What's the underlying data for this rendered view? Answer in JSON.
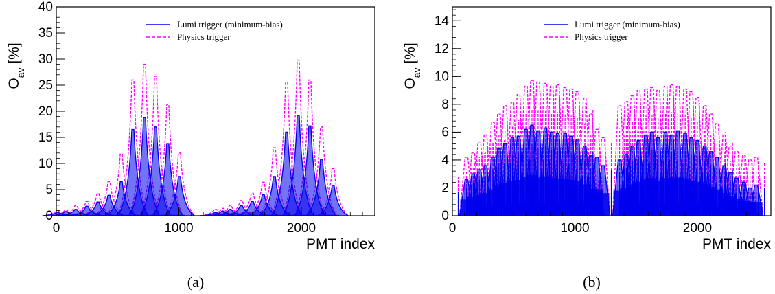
{
  "chart_data": [
    {
      "panel": "a",
      "type": "line",
      "caption": "(a)",
      "xlabel": "PMT index",
      "ylabel_main": "O",
      "ylabel_sub": "av",
      "ylabel_unit": " [%]",
      "xlim": [
        0,
        2600
      ],
      "ylim": [
        0,
        40
      ],
      "xticks": [
        0,
        1000,
        2000
      ],
      "yticks": [
        0,
        5,
        10,
        15,
        20,
        25,
        30,
        35,
        40
      ],
      "grid": false,
      "legend_position": "top-center",
      "gaps": [
        [
          1050,
          1270
        ],
        [
          2310,
          2600
        ]
      ],
      "series": [
        {
          "name": "Lumi trigger (minimum-bias)",
          "color": "#0000ee",
          "style": "solid",
          "peaks": [
            {
              "x": 10,
              "y": 0.6
            },
            {
              "x": 80,
              "y": 0.8
            },
            {
              "x": 160,
              "y": 1.2
            },
            {
              "x": 250,
              "y": 1.8
            },
            {
              "x": 340,
              "y": 2.6
            },
            {
              "x": 430,
              "y": 3.9
            },
            {
              "x": 530,
              "y": 6.5
            },
            {
              "x": 625,
              "y": 16.5
            },
            {
              "x": 720,
              "y": 18.8
            },
            {
              "x": 810,
              "y": 17.0
            },
            {
              "x": 910,
              "y": 13.8
            },
            {
              "x": 1005,
              "y": 7.5
            },
            {
              "x": 1300,
              "y": 0.6
            },
            {
              "x": 1360,
              "y": 0.9
            },
            {
              "x": 1420,
              "y": 1.2
            },
            {
              "x": 1510,
              "y": 1.9
            },
            {
              "x": 1600,
              "y": 2.7
            },
            {
              "x": 1690,
              "y": 4.0
            },
            {
              "x": 1780,
              "y": 7.5
            },
            {
              "x": 1880,
              "y": 16.0
            },
            {
              "x": 1975,
              "y": 19.2
            },
            {
              "x": 2070,
              "y": 17.2
            },
            {
              "x": 2165,
              "y": 10.8
            },
            {
              "x": 2260,
              "y": 5.8
            }
          ]
        },
        {
          "name": "Physics trigger",
          "color": "#ff00ff",
          "style": "dashed",
          "peaks": [
            {
              "x": 10,
              "y": 0.9
            },
            {
              "x": 80,
              "y": 1.1
            },
            {
              "x": 160,
              "y": 1.9
            },
            {
              "x": 250,
              "y": 2.7
            },
            {
              "x": 340,
              "y": 4.2
            },
            {
              "x": 430,
              "y": 6.5
            },
            {
              "x": 530,
              "y": 11.8
            },
            {
              "x": 625,
              "y": 26.0
            },
            {
              "x": 720,
              "y": 29.0
            },
            {
              "x": 810,
              "y": 26.7
            },
            {
              "x": 910,
              "y": 21.3
            },
            {
              "x": 1005,
              "y": 12.0
            },
            {
              "x": 1300,
              "y": 1.2
            },
            {
              "x": 1360,
              "y": 1.4
            },
            {
              "x": 1420,
              "y": 1.9
            },
            {
              "x": 1510,
              "y": 2.9
            },
            {
              "x": 1600,
              "y": 4.3
            },
            {
              "x": 1690,
              "y": 6.4
            },
            {
              "x": 1780,
              "y": 13.0
            },
            {
              "x": 1880,
              "y": 25.5
            },
            {
              "x": 1975,
              "y": 29.8
            },
            {
              "x": 2070,
              "y": 26.0
            },
            {
              "x": 2165,
              "y": 17.0
            },
            {
              "x": 2260,
              "y": 9.0
            }
          ]
        }
      ]
    },
    {
      "panel": "b",
      "type": "line",
      "caption": "(b)",
      "xlabel": "PMT index",
      "ylabel_main": "O",
      "ylabel_sub": "av",
      "ylabel_unit": " [%]",
      "xlim": [
        0,
        2600
      ],
      "ylim": [
        0,
        15
      ],
      "xticks": [
        0,
        1000,
        2000
      ],
      "yticks": [
        0,
        2,
        4,
        6,
        8,
        10,
        12,
        14
      ],
      "grid": false,
      "legend_position": "top-center",
      "gaps": [
        [
          0,
          100
        ],
        [
          1245,
          1350
        ],
        [
          2500,
          2600
        ]
      ],
      "series": [
        {
          "name": "Lumi trigger (minimum-bias)",
          "color": "#0000ee",
          "style": "solid",
          "peaks": [
            {
              "x": 115,
              "y": 2.6
            },
            {
              "x": 170,
              "y": 3.0
            },
            {
              "x": 220,
              "y": 3.3
            },
            {
              "x": 270,
              "y": 3.6
            },
            {
              "x": 330,
              "y": 4.2
            },
            {
              "x": 380,
              "y": 4.8
            },
            {
              "x": 430,
              "y": 5.2
            },
            {
              "x": 490,
              "y": 5.6
            },
            {
              "x": 540,
              "y": 5.7
            },
            {
              "x": 600,
              "y": 6.2
            },
            {
              "x": 650,
              "y": 6.5
            },
            {
              "x": 700,
              "y": 6.1
            },
            {
              "x": 760,
              "y": 6.3
            },
            {
              "x": 810,
              "y": 6.0
            },
            {
              "x": 860,
              "y": 5.9
            },
            {
              "x": 920,
              "y": 5.9
            },
            {
              "x": 970,
              "y": 5.7
            },
            {
              "x": 1020,
              "y": 5.5
            },
            {
              "x": 1080,
              "y": 5.0
            },
            {
              "x": 1130,
              "y": 4.3
            },
            {
              "x": 1180,
              "y": 4.2
            },
            {
              "x": 1230,
              "y": 3.6
            },
            {
              "x": 1365,
              "y": 4.0
            },
            {
              "x": 1420,
              "y": 4.4
            },
            {
              "x": 1470,
              "y": 5.0
            },
            {
              "x": 1520,
              "y": 5.4
            },
            {
              "x": 1580,
              "y": 5.8
            },
            {
              "x": 1630,
              "y": 6.0
            },
            {
              "x": 1680,
              "y": 5.6
            },
            {
              "x": 1740,
              "y": 6.0
            },
            {
              "x": 1790,
              "y": 5.8
            },
            {
              "x": 1840,
              "y": 6.1
            },
            {
              "x": 1900,
              "y": 5.9
            },
            {
              "x": 1950,
              "y": 5.6
            },
            {
              "x": 2000,
              "y": 5.4
            },
            {
              "x": 2060,
              "y": 5.0
            },
            {
              "x": 2110,
              "y": 4.6
            },
            {
              "x": 2160,
              "y": 4.2
            },
            {
              "x": 2220,
              "y": 3.6
            },
            {
              "x": 2270,
              "y": 3.1
            },
            {
              "x": 2320,
              "y": 2.7
            },
            {
              "x": 2380,
              "y": 2.4
            },
            {
              "x": 2430,
              "y": 2.0
            },
            {
              "x": 2480,
              "y": 2.2
            }
          ]
        },
        {
          "name": "Physics trigger",
          "color": "#ff00ff",
          "style": "dashed",
          "peaks": [
            {
              "x": 115,
              "y": 4.2
            },
            {
              "x": 170,
              "y": 4.5
            },
            {
              "x": 220,
              "y": 5.3
            },
            {
              "x": 270,
              "y": 5.8
            },
            {
              "x": 330,
              "y": 6.7
            },
            {
              "x": 380,
              "y": 7.3
            },
            {
              "x": 430,
              "y": 7.9
            },
            {
              "x": 490,
              "y": 8.1
            },
            {
              "x": 540,
              "y": 8.7
            },
            {
              "x": 600,
              "y": 9.3
            },
            {
              "x": 650,
              "y": 9.7
            },
            {
              "x": 700,
              "y": 9.6
            },
            {
              "x": 760,
              "y": 9.5
            },
            {
              "x": 810,
              "y": 9.3
            },
            {
              "x": 860,
              "y": 9.4
            },
            {
              "x": 920,
              "y": 9.2
            },
            {
              "x": 970,
              "y": 9.1
            },
            {
              "x": 1020,
              "y": 8.9
            },
            {
              "x": 1080,
              "y": 8.4
            },
            {
              "x": 1130,
              "y": 7.3
            },
            {
              "x": 1180,
              "y": 6.2
            },
            {
              "x": 1230,
              "y": 5.6
            },
            {
              "x": 1365,
              "y": 7.9
            },
            {
              "x": 1420,
              "y": 8.2
            },
            {
              "x": 1470,
              "y": 8.6
            },
            {
              "x": 1520,
              "y": 9.0
            },
            {
              "x": 1580,
              "y": 9.1
            },
            {
              "x": 1630,
              "y": 9.2
            },
            {
              "x": 1680,
              "y": 9.0
            },
            {
              "x": 1740,
              "y": 9.3
            },
            {
              "x": 1790,
              "y": 9.4
            },
            {
              "x": 1840,
              "y": 9.3
            },
            {
              "x": 1900,
              "y": 9.1
            },
            {
              "x": 1950,
              "y": 8.9
            },
            {
              "x": 2000,
              "y": 8.5
            },
            {
              "x": 2060,
              "y": 7.9
            },
            {
              "x": 2110,
              "y": 7.3
            },
            {
              "x": 2160,
              "y": 6.6
            },
            {
              "x": 2220,
              "y": 5.8
            },
            {
              "x": 2270,
              "y": 5.0
            },
            {
              "x": 2320,
              "y": 4.6
            },
            {
              "x": 2380,
              "y": 4.3
            },
            {
              "x": 2430,
              "y": 4.0
            },
            {
              "x": 2480,
              "y": 4.2
            }
          ]
        }
      ]
    }
  ]
}
